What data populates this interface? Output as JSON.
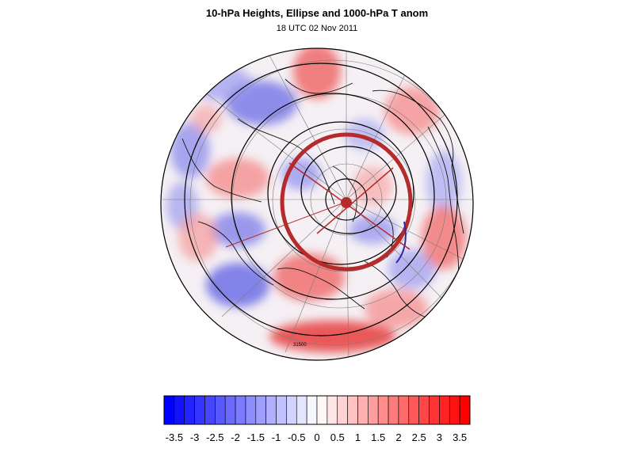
{
  "title": "10-hPa Heights, Ellipse and 1000-hPa T anom",
  "subtitle": "18 UTC 02 Nov 2011",
  "map_label": "31500",
  "colorbar": {
    "levels": [
      -3.75,
      -3.5,
      -3.25,
      -3,
      -2.75,
      -2.5,
      -2.25,
      -2,
      -1.75,
      -1.5,
      -1.25,
      -1,
      -0.75,
      -0.5,
      -0.25,
      0,
      0.25,
      0.5,
      0.75,
      1,
      1.25,
      1.5,
      1.75,
      2,
      2.25,
      2.5,
      2.75,
      3,
      3.25,
      3.5,
      3.75
    ],
    "tick_labels": [
      "-3.5",
      "-3",
      "-2.5",
      "-2",
      "-1.5",
      "-1",
      "-0.5",
      "0",
      "0.5",
      "1",
      "1.5",
      "2",
      "2.5",
      "3",
      "3.5"
    ],
    "negative_color": "#0000ff",
    "positive_color": "#ff0000",
    "neutral_color": "#ffffff"
  },
  "colors": {
    "ellipse": "#b52a2a",
    "contour": "#000000",
    "grid": "#7a7a7a"
  }
}
